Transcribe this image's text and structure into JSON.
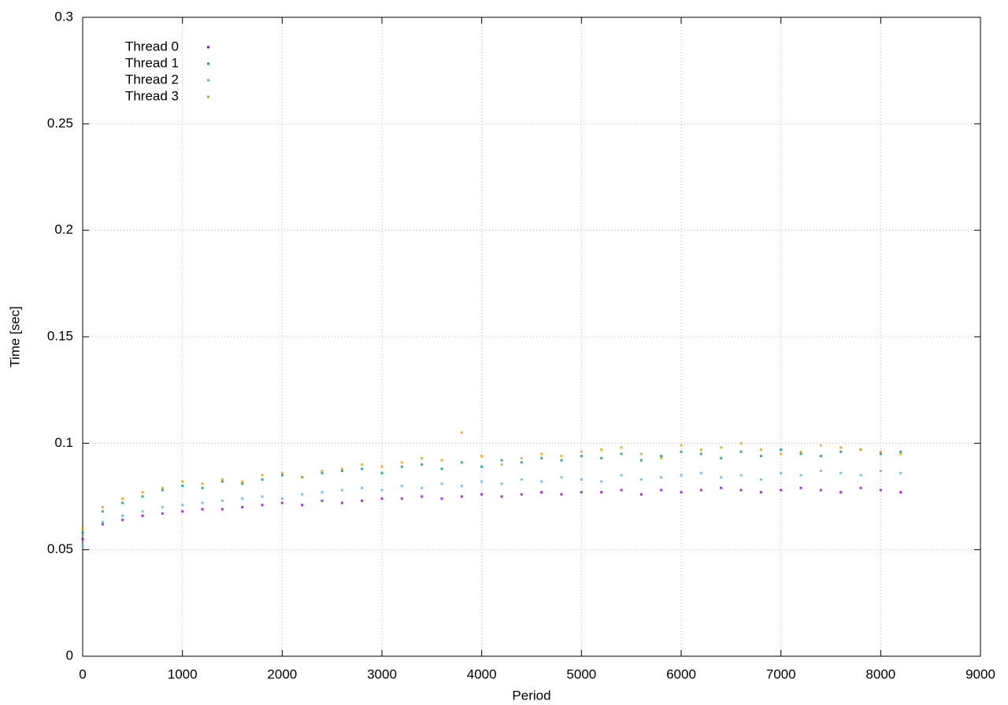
{
  "chart_data": {
    "type": "scatter",
    "x_label": "Period",
    "y_label": "Time [sec]",
    "xlim": [
      0,
      9000
    ],
    "xticks": [
      0,
      1000,
      2000,
      3000,
      4000,
      5000,
      6000,
      7000,
      8000,
      9000
    ],
    "ylim": [
      0,
      0.3
    ],
    "yticks": [
      0,
      0.05,
      0.1,
      0.15,
      0.2,
      0.25,
      0.3
    ],
    "grid": true,
    "legend": "top-left",
    "x": [
      0,
      200,
      400,
      600,
      800,
      1000,
      1200,
      1400,
      1600,
      1800,
      2000,
      2200,
      2400,
      2600,
      2800,
      3000,
      3200,
      3400,
      3600,
      3800,
      4000,
      4200,
      4400,
      4600,
      4800,
      5000,
      5200,
      5400,
      5600,
      5800,
      6000,
      6200,
      6400,
      6600,
      6800,
      7000,
      7200,
      7400,
      7600,
      7800,
      8000,
      8200
    ],
    "series": [
      {
        "name": "Thread 0",
        "color": "#9400d3",
        "values": [
          0.055,
          0.062,
          0.064,
          0.066,
          0.067,
          0.068,
          0.069,
          0.069,
          0.07,
          0.071,
          0.072,
          0.071,
          0.073,
          0.072,
          0.073,
          0.074,
          0.074,
          0.075,
          0.074,
          0.075,
          0.076,
          0.075,
          0.076,
          0.077,
          0.076,
          0.077,
          0.077,
          0.078,
          0.076,
          0.078,
          0.077,
          0.078,
          0.079,
          0.078,
          0.077,
          0.078,
          0.079,
          0.078,
          0.077,
          0.079,
          0.078,
          0.077
        ]
      },
      {
        "name": "Thread 1",
        "color": "#009e73",
        "values": [
          0.058,
          0.068,
          0.072,
          0.075,
          0.078,
          0.08,
          0.079,
          0.082,
          0.081,
          0.083,
          0.085,
          0.084,
          0.086,
          0.087,
          0.088,
          0.086,
          0.089,
          0.09,
          0.088,
          0.091,
          0.089,
          0.092,
          0.091,
          0.093,
          0.092,
          0.094,
          0.093,
          0.095,
          0.092,
          0.094,
          0.096,
          0.095,
          0.093,
          0.096,
          0.094,
          0.097,
          0.095,
          0.094,
          0.096,
          0.097,
          0.095,
          0.096
        ]
      },
      {
        "name": "Thread 2",
        "color": "#56b4e9",
        "values": [
          0.052,
          0.063,
          0.066,
          0.068,
          0.07,
          0.071,
          0.072,
          0.073,
          0.074,
          0.075,
          0.074,
          0.076,
          0.077,
          0.078,
          0.079,
          0.078,
          0.08,
          0.079,
          0.081,
          0.08,
          0.082,
          0.081,
          0.083,
          0.082,
          0.084,
          0.083,
          0.082,
          0.085,
          0.083,
          0.084,
          0.085,
          0.086,
          0.084,
          0.085,
          0.083,
          0.086,
          0.085,
          0.087,
          0.086,
          0.085,
          0.087,
          0.086
        ]
      },
      {
        "name": "Thread 3",
        "color": "#e69f00",
        "values": [
          0.06,
          0.07,
          0.074,
          0.077,
          0.079,
          0.082,
          0.081,
          0.083,
          0.082,
          0.085,
          0.086,
          0.084,
          0.087,
          0.088,
          0.09,
          0.089,
          0.091,
          0.093,
          0.092,
          0.105,
          0.094,
          0.09,
          0.093,
          0.095,
          0.094,
          0.096,
          0.097,
          0.098,
          0.095,
          0.093,
          0.099,
          0.097,
          0.098,
          0.1,
          0.097,
          0.095,
          0.096,
          0.099,
          0.098,
          0.097,
          0.096,
          0.095
        ]
      }
    ]
  }
}
